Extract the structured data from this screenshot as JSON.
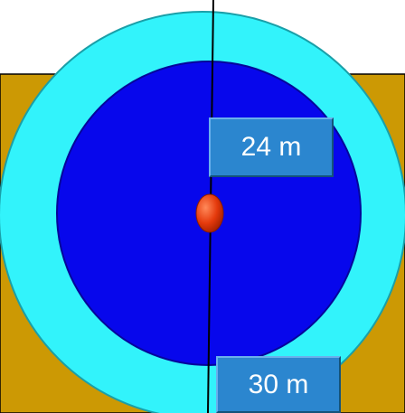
{
  "colors": {
    "ground": "#cc9904",
    "outer_ring": "#32f3fb",
    "inner_disk": "#0707ec",
    "center_marker": "#e53a0c",
    "label_box": "#2b86cf",
    "line": "#000000"
  },
  "labels": {
    "inner_radius": "24 m",
    "outer_radius": "30 m"
  }
}
